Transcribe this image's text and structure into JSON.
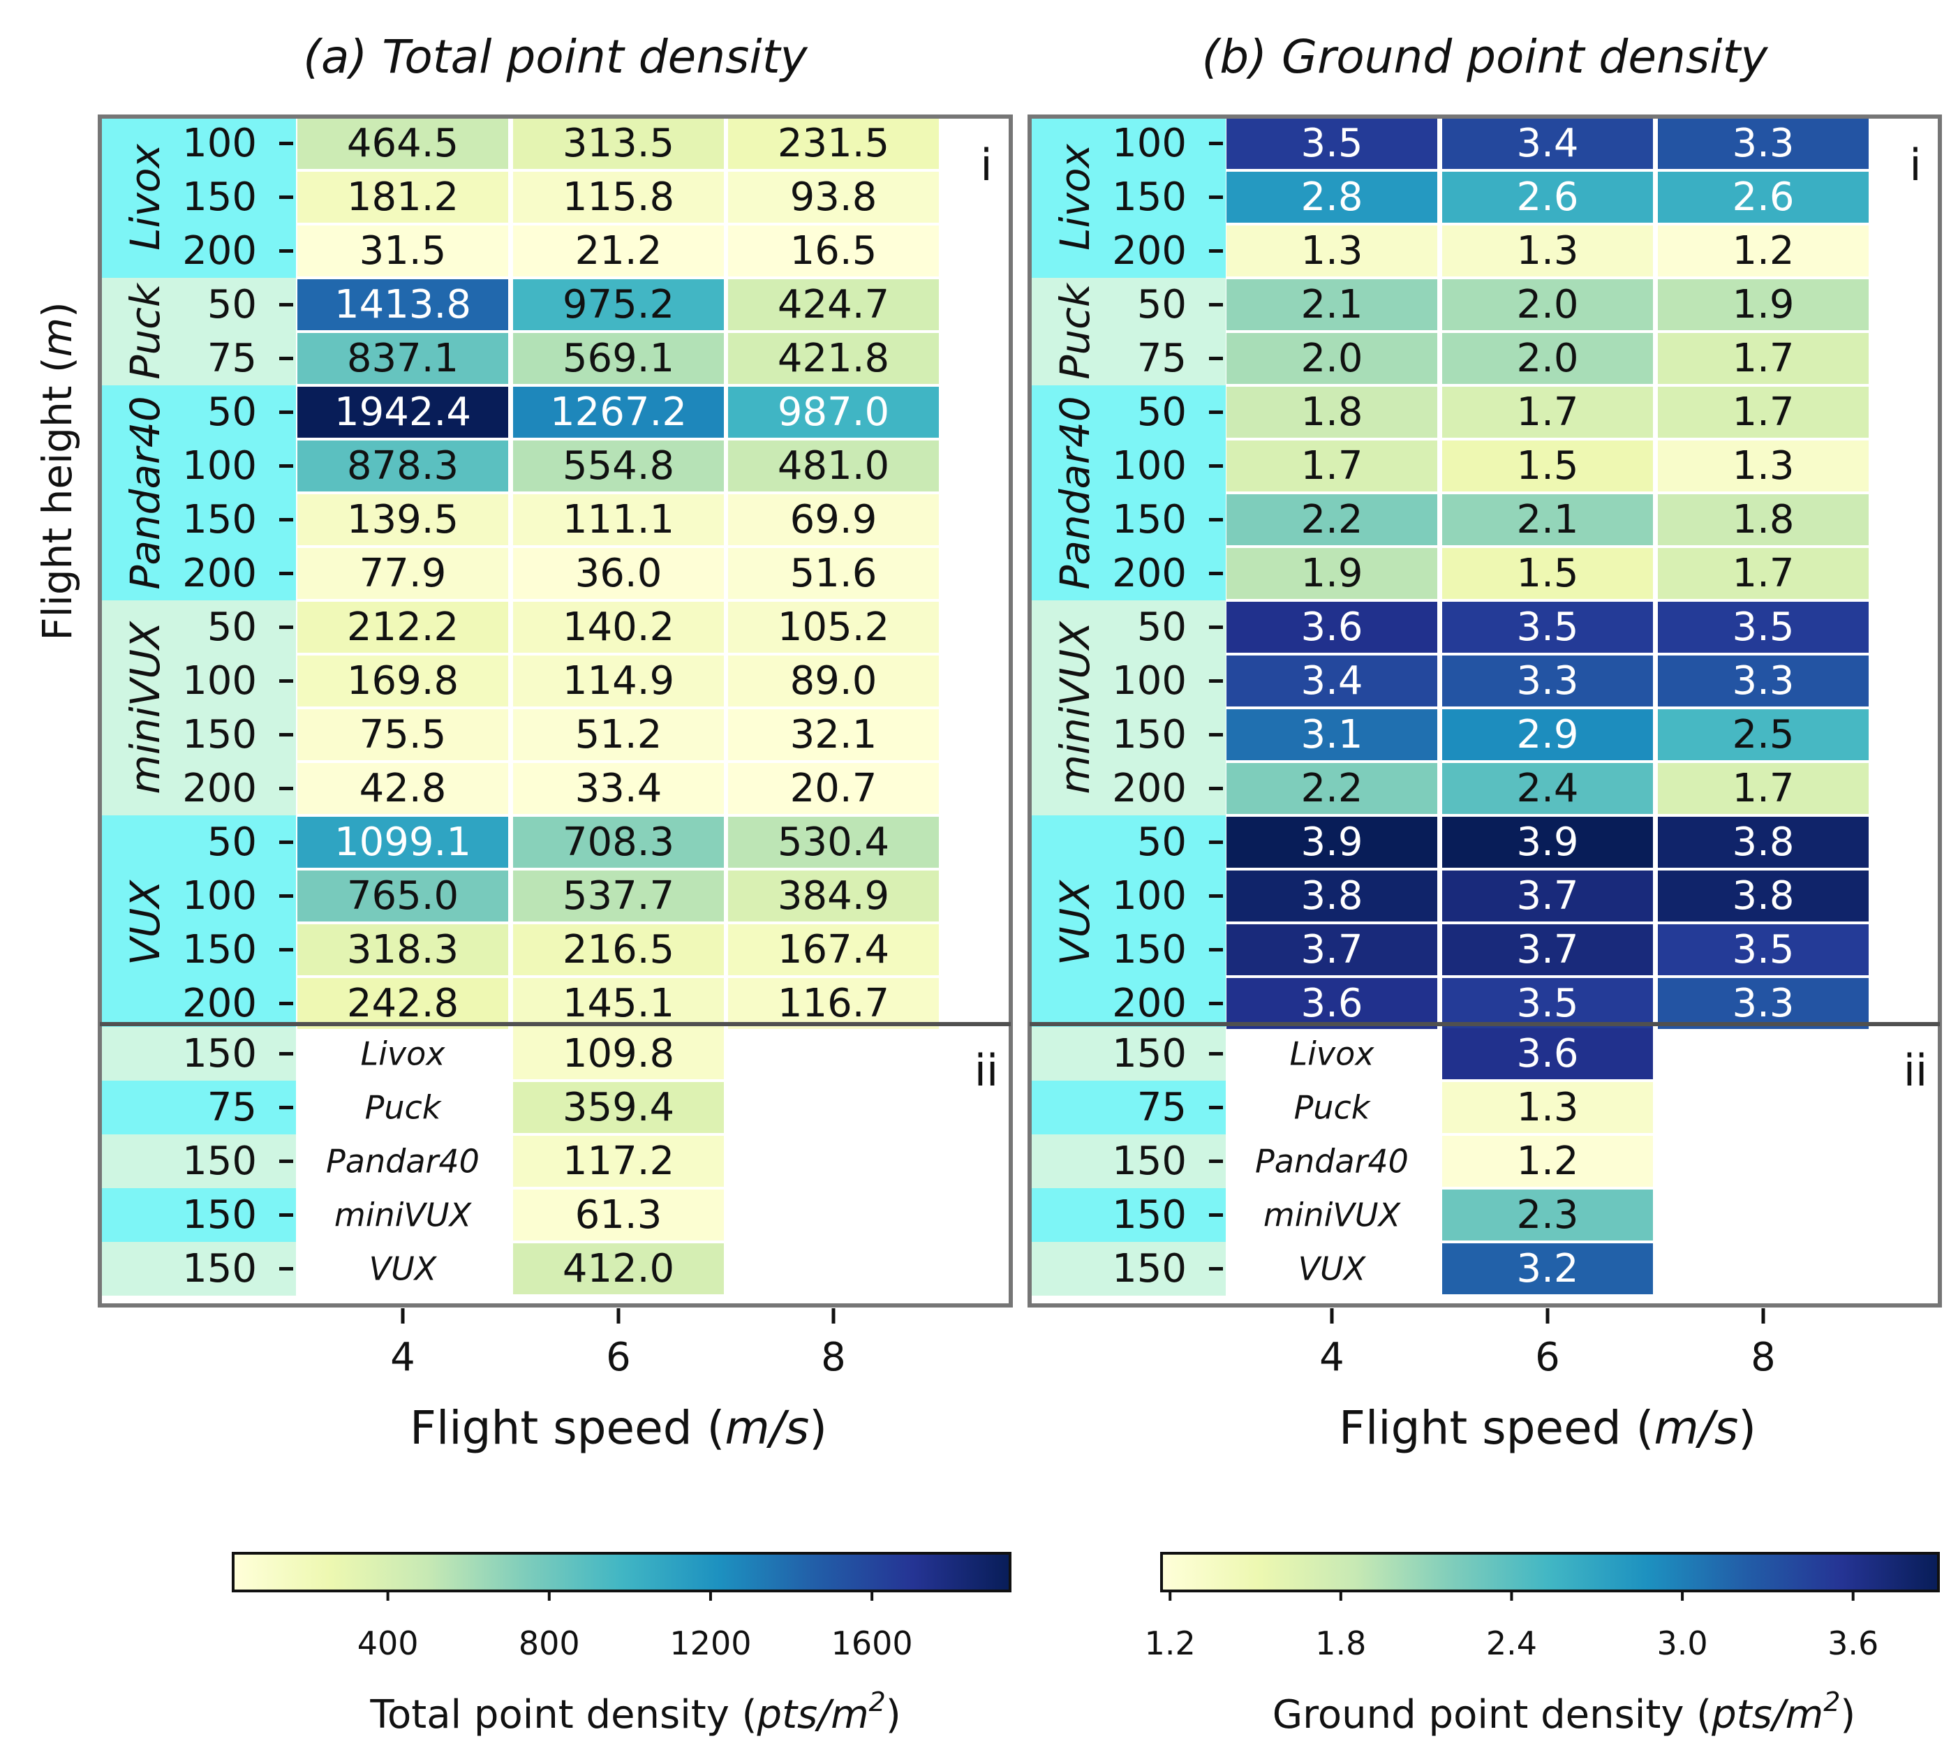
{
  "chart_data": [
    {
      "type": "heatmap",
      "title": "(a) Total point density",
      "xlabel_prefix": "Flight speed (",
      "xlabel_unit": "m/s",
      "xlabel_suffix": ")",
      "x_ticks": [
        "4",
        "6",
        "8"
      ],
      "panel_i_label": "i",
      "panel_ii_label": "ii",
      "colorbar": {
        "vmin": 16.5,
        "vmax": 1942.4,
        "ticks": [
          400,
          800,
          1200,
          1600
        ],
        "tick_labels": [
          "400",
          "800",
          "1200",
          "1600"
        ],
        "label_prefix": "Total point density (",
        "label_unit": "pts/m",
        "label_sup": "2",
        "label_suffix": ")"
      },
      "section_i": [
        {
          "sensor": "Livox",
          "rows": [
            {
              "height": "100",
              "values": [
                464.5,
                313.5,
                231.5
              ]
            },
            {
              "height": "150",
              "values": [
                181.2,
                115.8,
                93.8
              ]
            },
            {
              "height": "200",
              "values": [
                31.5,
                21.2,
                16.5
              ]
            }
          ]
        },
        {
          "sensor": "Puck",
          "rows": [
            {
              "height": "50",
              "values": [
                1413.8,
                975.2,
                424.7
              ]
            },
            {
              "height": "75",
              "values": [
                837.1,
                569.1,
                421.8
              ]
            }
          ]
        },
        {
          "sensor": "Pandar40",
          "rows": [
            {
              "height": "50",
              "values": [
                1942.4,
                1267.2,
                987.0
              ]
            },
            {
              "height": "100",
              "values": [
                878.3,
                554.8,
                481.0
              ]
            },
            {
              "height": "150",
              "values": [
                139.5,
                111.1,
                69.9
              ]
            },
            {
              "height": "200",
              "values": [
                77.9,
                36.0,
                51.6
              ]
            }
          ]
        },
        {
          "sensor": "miniVUX",
          "rows": [
            {
              "height": "50",
              "values": [
                212.2,
                140.2,
                105.2
              ]
            },
            {
              "height": "100",
              "values": [
                169.8,
                114.9,
                89.0
              ]
            },
            {
              "height": "150",
              "values": [
                75.5,
                51.2,
                32.1
              ]
            },
            {
              "height": "200",
              "values": [
                42.8,
                33.4,
                20.7
              ]
            }
          ]
        },
        {
          "sensor": "VUX",
          "rows": [
            {
              "height": "50",
              "values": [
                1099.1,
                708.3,
                530.4
              ]
            },
            {
              "height": "100",
              "values": [
                765.0,
                537.7,
                384.9
              ]
            },
            {
              "height": "150",
              "values": [
                318.3,
                216.5,
                167.4
              ]
            },
            {
              "height": "200",
              "values": [
                242.8,
                145.1,
                116.7
              ]
            }
          ]
        }
      ],
      "section_ii": [
        {
          "height": "150",
          "sensor": "Livox",
          "value": 109.8
        },
        {
          "height": "75",
          "sensor": "Puck",
          "value": 359.4
        },
        {
          "height": "150",
          "sensor": "Pandar40",
          "value": 117.2
        },
        {
          "height": "150",
          "sensor": "miniVUX",
          "value": 61.3
        },
        {
          "height": "150",
          "sensor": "VUX",
          "value": 412.0
        }
      ]
    },
    {
      "type": "heatmap",
      "title": "(b) Ground point density",
      "xlabel_prefix": "Flight speed (",
      "xlabel_unit": "m/s",
      "xlabel_suffix": ")",
      "x_ticks": [
        "4",
        "6",
        "8"
      ],
      "panel_i_label": "i",
      "panel_ii_label": "ii",
      "colorbar": {
        "vmin": 1.17,
        "vmax": 3.9,
        "ticks": [
          1.2,
          1.8,
          2.4,
          3.0,
          3.6
        ],
        "tick_labels": [
          "1.2",
          "1.8",
          "2.4",
          "3.0",
          "3.6"
        ],
        "label_prefix": "Ground point density (",
        "label_unit": "pts/m",
        "label_sup": "2",
        "label_suffix": ")"
      },
      "section_i": [
        {
          "sensor": "Livox",
          "rows": [
            {
              "height": "100",
              "values": [
                3.5,
                3.4,
                3.3
              ]
            },
            {
              "height": "150",
              "values": [
                2.8,
                2.6,
                2.6
              ]
            },
            {
              "height": "200",
              "values": [
                1.3,
                1.3,
                1.2
              ]
            }
          ]
        },
        {
          "sensor": "Puck",
          "rows": [
            {
              "height": "50",
              "values": [
                2.1,
                2.0,
                1.9
              ]
            },
            {
              "height": "75",
              "values": [
                2.0,
                2.0,
                1.7
              ]
            }
          ]
        },
        {
          "sensor": "Pandar40",
          "rows": [
            {
              "height": "50",
              "values": [
                1.8,
                1.7,
                1.7
              ]
            },
            {
              "height": "100",
              "values": [
                1.7,
                1.5,
                1.3
              ]
            },
            {
              "height": "150",
              "values": [
                2.2,
                2.1,
                1.8
              ]
            },
            {
              "height": "200",
              "values": [
                1.9,
                1.5,
                1.7
              ]
            }
          ]
        },
        {
          "sensor": "miniVUX",
          "rows": [
            {
              "height": "50",
              "values": [
                3.6,
                3.5,
                3.5
              ]
            },
            {
              "height": "100",
              "values": [
                3.4,
                3.3,
                3.3
              ]
            },
            {
              "height": "150",
              "values": [
                3.1,
                2.9,
                2.5
              ]
            },
            {
              "height": "200",
              "values": [
                2.2,
                2.4,
                1.7
              ]
            }
          ]
        },
        {
          "sensor": "VUX",
          "rows": [
            {
              "height": "50",
              "values": [
                3.9,
                3.9,
                3.8
              ]
            },
            {
              "height": "100",
              "values": [
                3.8,
                3.7,
                3.8
              ]
            },
            {
              "height": "150",
              "values": [
                3.7,
                3.7,
                3.5
              ]
            },
            {
              "height": "200",
              "values": [
                3.6,
                3.5,
                3.3
              ]
            }
          ]
        }
      ],
      "section_ii": [
        {
          "height": "150",
          "sensor": "Livox",
          "value": 3.6
        },
        {
          "height": "75",
          "sensor": "Puck",
          "value": 1.3
        },
        {
          "height": "150",
          "sensor": "Pandar40",
          "value": 1.2
        },
        {
          "height": "150",
          "sensor": "miniVUX",
          "value": 2.3
        },
        {
          "height": "150",
          "sensor": "VUX",
          "value": 3.2
        }
      ]
    }
  ],
  "shared": {
    "ylabel_prefix": "Flight height (",
    "ylabel_unit": "m",
    "ylabel_suffix": ")"
  },
  "colors": {
    "band_cyan": "#7df5f6",
    "band_mint": "#cff6e2",
    "frame": "#767676",
    "divider": "#505050",
    "ink": "#111111",
    "colormap": [
      "#ffffd9",
      "#edf8b1",
      "#c7e9b4",
      "#7fcdbb",
      "#41b6c4",
      "#1d91c0",
      "#225ea8",
      "#253494",
      "#081d58"
    ]
  }
}
